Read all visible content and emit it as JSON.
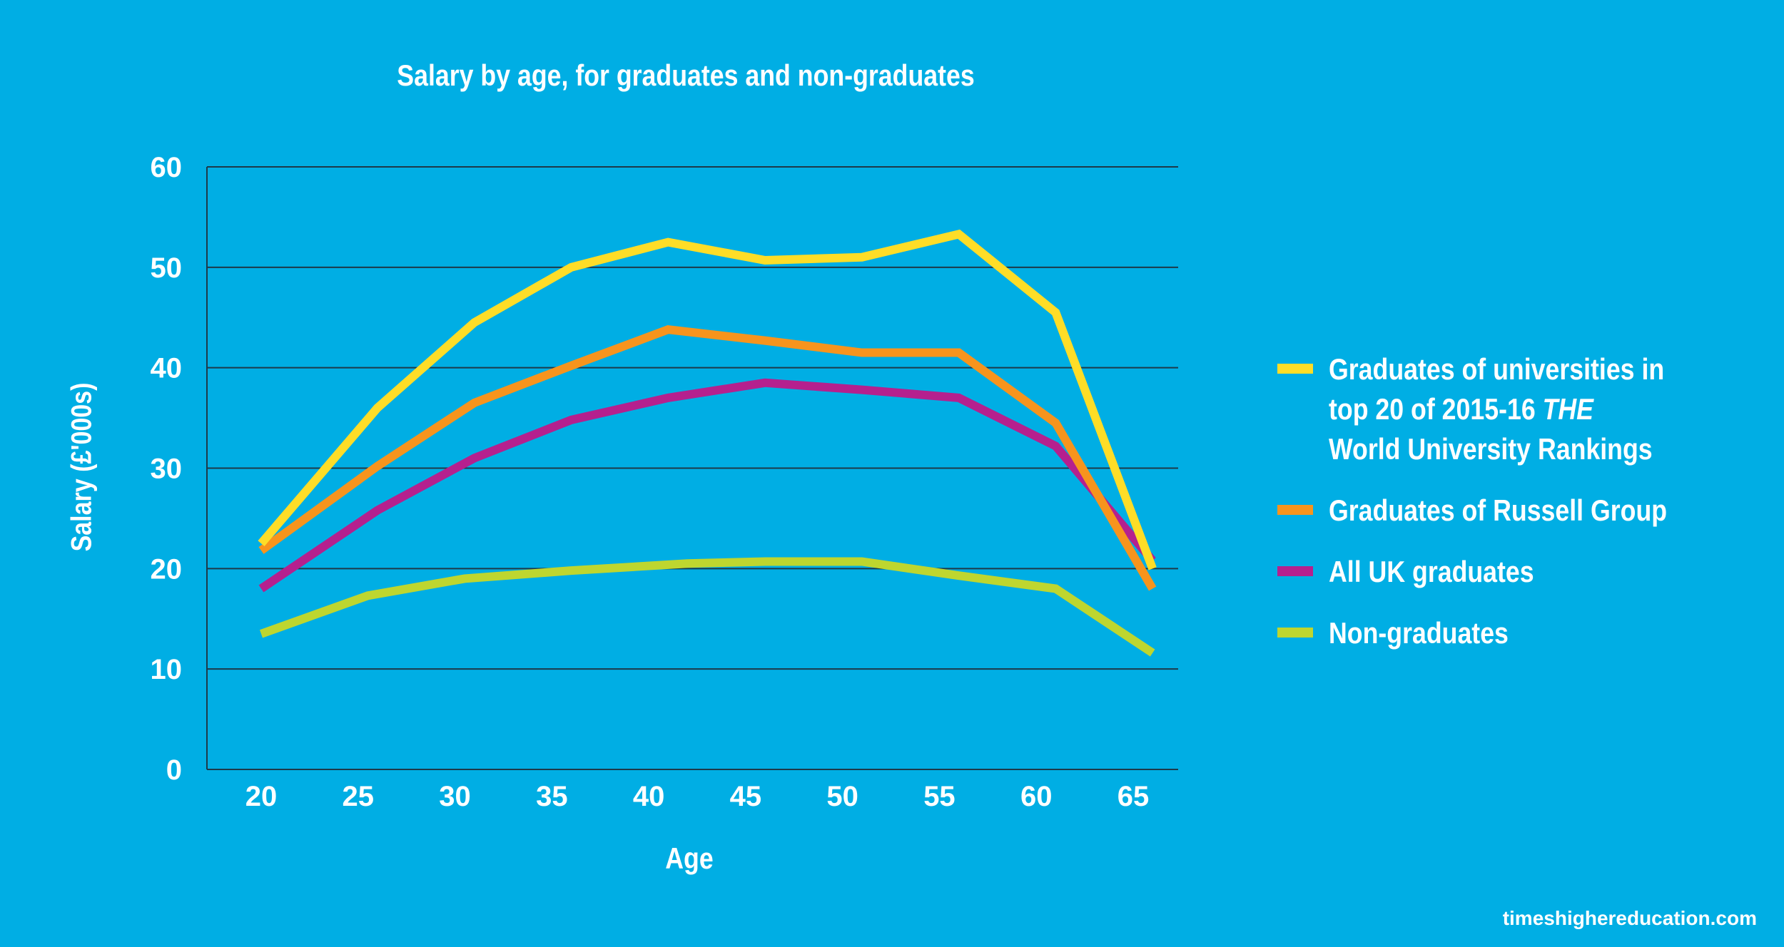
{
  "chart_data": {
    "type": "line",
    "title": "Salary by age, for graduates and non-graduates",
    "xlabel": "Age",
    "ylabel": "Salary (£'000s)",
    "xticks": [
      20,
      25,
      30,
      35,
      40,
      45,
      50,
      55,
      60,
      65
    ],
    "yticks": [
      0,
      10,
      20,
      30,
      40,
      50,
      60
    ],
    "xlim": [
      20,
      65
    ],
    "ylim": [
      0,
      60
    ],
    "grid": "horizontal",
    "legend_position": "right",
    "series": [
      {
        "name": "Graduates of universities in top 20 of 2015-16 THE World University Rankings",
        "legend_lines": [
          "Graduates of universities in",
          "top 20 of 2015-16 ",
          "THE",
          "World University Rankings"
        ],
        "color": "#fedd27",
        "x": [
          20,
          26,
          31,
          36,
          41,
          46,
          51,
          56,
          61,
          66
        ],
        "values": [
          22.5,
          36,
          44.5,
          50,
          52.5,
          50.7,
          51,
          53.3,
          45.5,
          20
        ]
      },
      {
        "name": "Graduates of Russell Group",
        "color": "#f7941d",
        "x": [
          20,
          26,
          31,
          36,
          41,
          46,
          51,
          56,
          61,
          66
        ],
        "values": [
          21.8,
          30.2,
          36.5,
          40.2,
          43.8,
          42.7,
          41.5,
          41.5,
          34.5,
          18
        ]
      },
      {
        "name": "All UK graduates",
        "color": "#b5208e",
        "x": [
          20,
          26,
          31,
          36,
          41,
          46,
          51,
          56,
          61,
          66
        ],
        "values": [
          18,
          25.8,
          31,
          34.8,
          37,
          38.5,
          37.8,
          37,
          32.2,
          20.8
        ]
      },
      {
        "name": "Non-graduates",
        "color": "#bed62f",
        "x": [
          20,
          25.5,
          30.5,
          36,
          42,
          46,
          51,
          56,
          61,
          66
        ],
        "values": [
          13.5,
          17.3,
          19,
          19.8,
          20.5,
          20.7,
          20.7,
          19.3,
          18,
          11.6
        ]
      }
    ]
  },
  "footer": "timeshighereducation.com"
}
